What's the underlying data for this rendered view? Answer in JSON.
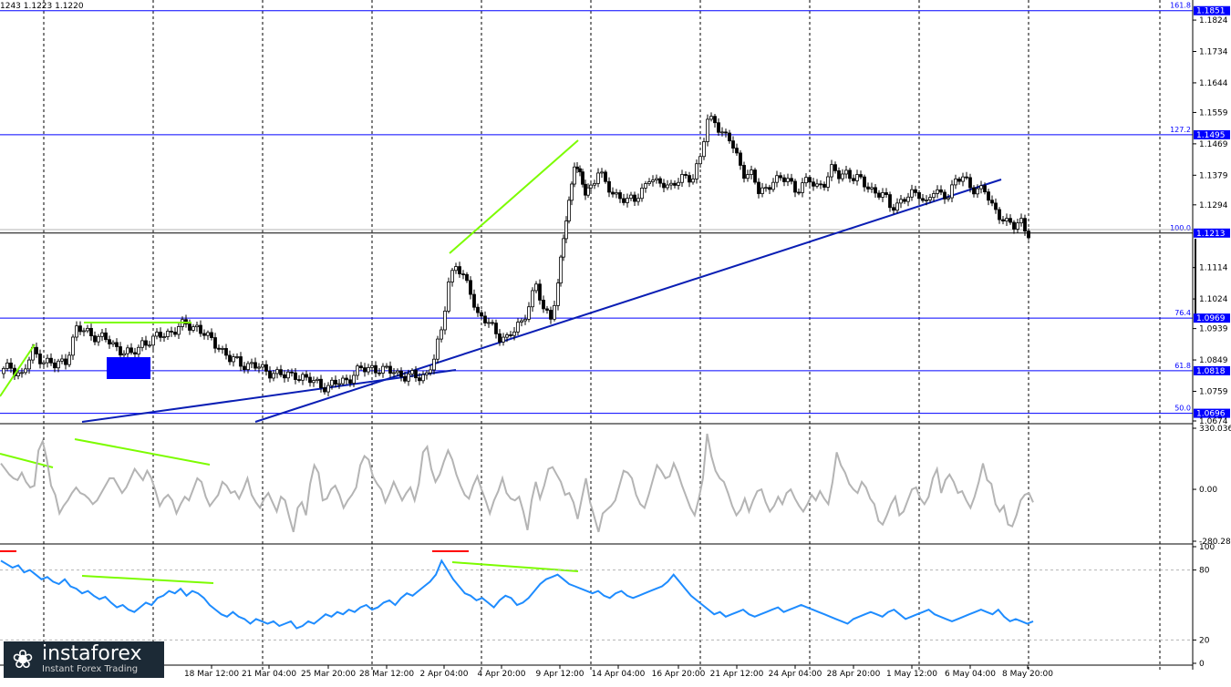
{
  "ohlc_text": "1243 1.1223 1.1220",
  "logo": {
    "name": "instaforex",
    "tagline": "Instant Forex Trading",
    "mark": "❀"
  },
  "colors": {
    "background": "#ffffff",
    "axis": "#000000",
    "grid": "#000000",
    "candle": "#000000",
    "level": "#0000ff",
    "trendline": "#0a1eb4",
    "divergence": "#7cfc00",
    "cci": "#b4b4b4",
    "stochastic": "#1e8cff",
    "marker_red": "#ff0000",
    "highlight_box": "#0000ff"
  },
  "chart_data": [
    {
      "type": "candlestick",
      "title": "",
      "x_tick_labels": [
        "18 Mar 12:00",
        "21 Mar 04:00",
        "25 Mar 20:00",
        "28 Mar 12:00",
        "2 Apr 04:00",
        "4 Apr 20:00",
        "9 Apr 12:00",
        "14 Apr 04:00",
        "16 Apr 20:00",
        "21 Apr 12:00",
        "24 Apr 04:00",
        "28 Apr 20:00",
        "1 May 12:00",
        "6 May 04:00",
        "8 May 20:00"
      ],
      "y_tick_labels": [
        "1.1824",
        "1.1734",
        "1.1644",
        "1.1559",
        "1.1469",
        "1.1379",
        "1.1294",
        "1.1114",
        "1.1024",
        "1.0939",
        "1.0849",
        "1.0759",
        "1.0674"
      ],
      "ylim": [
        1.0674,
        1.1866
      ],
      "current_price": "1.1213",
      "close_path": [
        [
          0,
          1.081
        ],
        [
          12,
          1.083
        ],
        [
          24,
          1.0805
        ],
        [
          36,
          1.087
        ],
        [
          48,
          1.085
        ],
        [
          60,
          1.083
        ],
        [
          72,
          1.085
        ],
        [
          84,
          1.0935
        ],
        [
          96,
          1.093
        ],
        [
          108,
          1.0915
        ],
        [
          120,
          1.09
        ],
        [
          132,
          1.088
        ],
        [
          144,
          1.086
        ],
        [
          156,
          1.09
        ],
        [
          168,
          1.0905
        ],
        [
          180,
          1.0925
        ],
        [
          192,
          1.0935
        ],
        [
          204,
          1.095
        ],
        [
          216,
          1.0945
        ],
        [
          228,
          1.091
        ],
        [
          240,
          1.089
        ],
        [
          252,
          1.085
        ],
        [
          264,
          1.084
        ],
        [
          276,
          1.0835
        ],
        [
          288,
          1.082
        ],
        [
          300,
          1.0815
        ],
        [
          312,
          1.08
        ],
        [
          324,
          1.081
        ],
        [
          336,
          1.079
        ],
        [
          348,
          1.0785
        ],
        [
          360,
          1.077
        ],
        [
          372,
          1.0785
        ],
        [
          384,
          1.08
        ],
        [
          396,
          1.082
        ],
        [
          408,
          1.083
        ],
        [
          420,
          1.0815
        ],
        [
          432,
          1.082
        ],
        [
          444,
          1.08
        ],
        [
          456,
          1.08
        ],
        [
          468,
          1.081
        ],
        [
          476,
          1.085
        ],
        [
          484,
          1.093
        ],
        [
          492,
          1.108
        ],
        [
          500,
          1.112
        ],
        [
          508,
          1.108
        ],
        [
          516,
          1.105
        ],
        [
          524,
          1.098
        ],
        [
          532,
          1.096
        ],
        [
          540,
          1.094
        ],
        [
          548,
          1.092
        ],
        [
          556,
          1.091
        ],
        [
          564,
          1.093
        ],
        [
          572,
          1.096
        ],
        [
          580,
          1.101
        ],
        [
          588,
          1.106
        ],
        [
          596,
          1.099
        ],
        [
          604,
          1.098
        ],
        [
          612,
          1.106
        ],
        [
          618,
          1.12
        ],
        [
          624,
          1.13
        ],
        [
          630,
          1.142
        ],
        [
          636,
          1.137
        ],
        [
          642,
          1.133
        ],
        [
          648,
          1.135
        ],
        [
          656,
          1.139
        ],
        [
          664,
          1.135
        ],
        [
          672,
          1.133
        ],
        [
          680,
          1.132
        ],
        [
          688,
          1.13
        ],
        [
          696,
          1.131
        ],
        [
          704,
          1.134
        ],
        [
          712,
          1.137
        ],
        [
          720,
          1.135
        ],
        [
          728,
          1.136
        ],
        [
          736,
          1.135
        ],
        [
          744,
          1.136
        ],
        [
          752,
          1.137
        ],
        [
          760,
          1.138
        ],
        [
          768,
          1.143
        ],
        [
          776,
          1.153
        ],
        [
          784,
          1.154
        ],
        [
          792,
          1.15
        ],
        [
          800,
          1.148
        ],
        [
          808,
          1.143
        ],
        [
          816,
          1.139
        ],
        [
          824,
          1.138
        ],
        [
          832,
          1.133
        ],
        [
          840,
          1.134
        ],
        [
          848,
          1.137
        ],
        [
          856,
          1.136
        ],
        [
          864,
          1.137
        ],
        [
          872,
          1.134
        ],
        [
          880,
          1.135
        ],
        [
          888,
          1.136
        ],
        [
          896,
          1.135
        ],
        [
          904,
          1.136
        ],
        [
          912,
          1.139
        ],
        [
          920,
          1.138
        ],
        [
          928,
          1.139
        ],
        [
          936,
          1.137
        ],
        [
          944,
          1.136
        ],
        [
          952,
          1.135
        ],
        [
          960,
          1.133
        ],
        [
          968,
          1.132
        ],
        [
          976,
          1.129
        ],
        [
          984,
          1.13
        ],
        [
          992,
          1.131
        ],
        [
          1000,
          1.132
        ],
        [
          1008,
          1.133
        ],
        [
          1016,
          1.13
        ],
        [
          1024,
          1.133
        ],
        [
          1032,
          1.132
        ],
        [
          1040,
          1.133
        ],
        [
          1048,
          1.136
        ],
        [
          1056,
          1.137
        ],
        [
          1064,
          1.135
        ],
        [
          1072,
          1.134
        ],
        [
          1080,
          1.133
        ],
        [
          1088,
          1.129
        ],
        [
          1096,
          1.127
        ],
        [
          1104,
          1.124
        ],
        [
          1112,
          1.123
        ],
        [
          1120,
          1.125
        ],
        [
          1128,
          1.1213
        ]
      ],
      "fib_levels": [
        {
          "label": "161.8",
          "price": "1.1851",
          "value": 1.1851
        },
        {
          "label": "127.2",
          "price": "1.1495",
          "value": 1.1495
        },
        {
          "label": "100.0",
          "price": "1.1213",
          "value": 1.1213
        },
        {
          "label": "76.4",
          "price": "1.0969",
          "value": 1.0969
        },
        {
          "label": "61.8",
          "price": "1.0818",
          "value": 1.0818
        },
        {
          "label": "50.0",
          "price": "1.0696",
          "value": 1.0696
        }
      ]
    },
    {
      "type": "line",
      "title": "",
      "y_tick_labels": [
        "330.0361",
        "0.00",
        "-280.2849"
      ],
      "ylim": [
        -280.2849,
        330.0361
      ],
      "values": [
        140,
        110,
        80,
        60,
        50,
        90,
        40,
        10,
        20,
        210,
        260,
        160,
        20,
        -30,
        -130,
        -90,
        -60,
        -20,
        10,
        -20,
        -30,
        -50,
        -80,
        -60,
        -20,
        20,
        60,
        60,
        20,
        -20,
        10,
        60,
        110,
        80,
        50,
        100,
        60,
        -10,
        -90,
        -50,
        -30,
        -60,
        -130,
        -80,
        -40,
        -60,
        0,
        60,
        40,
        -40,
        -90,
        -60,
        -30,
        40,
        20,
        -20,
        -10,
        -50,
        0,
        60,
        -30,
        -70,
        -100,
        -50,
        -20,
        -70,
        -120,
        -40,
        -60,
        -150,
        -230,
        -100,
        -70,
        -140,
        30,
        130,
        90,
        -60,
        -50,
        0,
        20,
        -30,
        -100,
        -60,
        -30,
        10,
        130,
        180,
        160,
        70,
        30,
        0,
        -70,
        -20,
        40,
        -10,
        -60,
        -20,
        10,
        -60,
        30,
        200,
        230,
        110,
        40,
        80,
        150,
        210,
        160,
        80,
        20,
        -30,
        -50,
        20,
        70,
        0,
        -60,
        -130,
        -60,
        -10,
        60,
        -20,
        -50,
        -60,
        -40,
        -120,
        -220,
        -60,
        40,
        -50,
        20,
        110,
        120,
        80,
        40,
        -30,
        -20,
        -70,
        -160,
        -50,
        60,
        -70,
        -150,
        -230,
        -130,
        -110,
        -90,
        -60,
        20,
        100,
        90,
        60,
        -30,
        -80,
        -100,
        -30,
        50,
        130,
        100,
        60,
        70,
        140,
        90,
        20,
        -40,
        -100,
        -140,
        -50,
        60,
        300,
        180,
        100,
        60,
        40,
        -20,
        -90,
        -140,
        -110,
        -50,
        -120,
        -60,
        -10,
        0,
        -70,
        -120,
        -90,
        -40,
        -80,
        -20,
        0,
        -50,
        -90,
        -120,
        -80,
        -30,
        -60,
        -10,
        -50,
        -80,
        40,
        200,
        130,
        90,
        30,
        0,
        -20,
        40,
        10,
        -50,
        -80,
        -170,
        -190,
        -140,
        -80,
        -40,
        -140,
        -120,
        -60,
        0,
        10,
        -50,
        -80,
        -40,
        60,
        110,
        -20,
        50,
        80,
        40,
        -20,
        -10,
        -60,
        -100,
        -40,
        40,
        140,
        50,
        30,
        -80,
        -120,
        -90,
        -190,
        -200,
        -140,
        -60,
        -30,
        -20,
        -70
      ]
    },
    {
      "type": "line",
      "title": "",
      "y_tick_labels": [
        "100",
        "80",
        "20",
        "0"
      ],
      "ylim": [
        0,
        100
      ],
      "values": [
        88,
        85,
        82,
        84,
        78,
        80,
        76,
        72,
        74,
        70,
        68,
        72,
        66,
        64,
        60,
        62,
        58,
        55,
        57,
        52,
        48,
        50,
        46,
        44,
        48,
        52,
        50,
        56,
        58,
        62,
        60,
        64,
        58,
        62,
        60,
        56,
        50,
        46,
        42,
        40,
        44,
        40,
        38,
        34,
        38,
        36,
        34,
        36,
        32,
        34,
        36,
        30,
        32,
        36,
        34,
        38,
        42,
        40,
        44,
        42,
        46,
        44,
        48,
        50,
        46,
        48,
        52,
        54,
        50,
        56,
        60,
        58,
        62,
        66,
        70,
        76,
        88,
        80,
        72,
        66,
        60,
        58,
        54,
        56,
        52,
        48,
        54,
        58,
        56,
        50,
        52,
        56,
        62,
        68,
        72,
        74,
        76,
        72,
        68,
        66,
        64,
        62,
        60,
        62,
        58,
        56,
        60,
        62,
        58,
        56,
        58,
        60,
        62,
        64,
        66,
        70,
        76,
        70,
        64,
        58,
        54,
        50,
        46,
        42,
        44,
        40,
        42,
        44,
        46,
        42,
        40,
        42,
        44,
        46,
        48,
        44,
        46,
        48,
        50,
        48,
        46,
        44,
        42,
        40,
        38,
        36,
        34,
        38,
        40,
        42,
        44,
        42,
        40,
        44,
        46,
        42,
        38,
        40,
        42,
        44,
        46,
        42,
        40,
        38,
        36,
        38,
        40,
        42,
        44,
        46,
        44,
        42,
        46,
        40,
        36,
        38,
        36,
        34,
        36
      ]
    }
  ]
}
